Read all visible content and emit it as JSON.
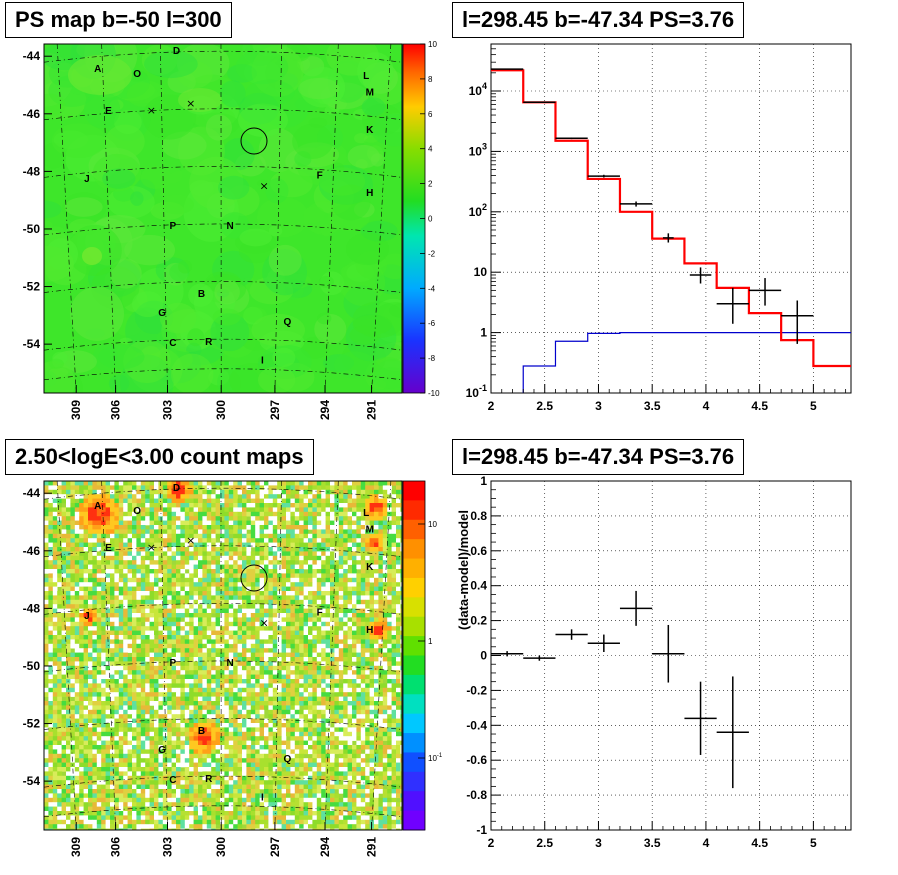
{
  "titles": {
    "ps_map": "PS map b=-50 l=300",
    "spectrum": "l=298.45 b=-47.34 PS=3.76",
    "count_map": "2.50<logE<3.00 count maps",
    "residual": "l=298.45 b=-47.34 PS=3.76"
  },
  "colors": {
    "data": "#000000",
    "model": "#ff0000",
    "background": "#0000cc",
    "map_green": "#2ee61a",
    "circle": "#000000"
  },
  "chart_data": [
    {
      "type": "heatmap",
      "title": "PS map b=-50 l=300",
      "x_ticks": [
        "309",
        "306",
        "303",
        "300",
        "297",
        "294",
        "291"
      ],
      "y_ticks": [
        "-44",
        "-46",
        "-48",
        "-50",
        "-52",
        "-54"
      ],
      "colorbar": {
        "min": -10,
        "max": 10,
        "ticks": [
          "10",
          "8",
          "6",
          "4",
          "2",
          "0",
          "-2",
          "-4",
          "-6",
          "-8",
          "-10"
        ]
      },
      "sources": [
        "A",
        "O",
        "D",
        "E",
        "L",
        "M",
        "K",
        "J",
        "F",
        "H",
        "P",
        "N",
        "B",
        "G",
        "Q",
        "C",
        "R",
        "I"
      ],
      "markers": [
        "x",
        "x",
        "x"
      ],
      "circle": {
        "l": 298.45,
        "b": -47.34
      },
      "grid": true
    },
    {
      "type": "line",
      "title": "l=298.45 b=-47.34 PS=3.76",
      "xlabel": "",
      "ylabel": "",
      "x_ticks": [
        "2",
        "2.5",
        "3",
        "3.5",
        "4",
        "4.5",
        "5"
      ],
      "y_ticks": [
        "10^-1",
        "1",
        "10",
        "10^2",
        "10^3",
        "10^4"
      ],
      "xlim": [
        2,
        5.35
      ],
      "ylim": [
        0.1,
        60000
      ],
      "log_y": true,
      "grid": true,
      "bin_edges": [
        2.0,
        2.3,
        2.6,
        2.9,
        3.2,
        3.5,
        3.8,
        4.1,
        4.4,
        4.7,
        5.0,
        5.35
      ],
      "series": [
        {
          "role": "model",
          "values": [
            22000,
            6500,
            1500,
            350,
            100,
            36,
            14,
            5.5,
            2.1,
            0.75,
            0.28
          ]
        },
        {
          "role": "background",
          "values": [
            0.07,
            0.28,
            0.72,
            0.97,
            1.0,
            1.0,
            1.0,
            1.0,
            1.0,
            1.0,
            1.0
          ]
        },
        {
          "role": "data",
          "points": [
            {
              "x": 2.15,
              "y": 23000,
              "xerr": 0.15,
              "ylo": 22800,
              "yhi": 23200
            },
            {
              "x": 2.45,
              "y": 6500,
              "xerr": 0.15,
              "ylo": 6400,
              "yhi": 6600
            },
            {
              "x": 2.75,
              "y": 1650,
              "xerr": 0.15,
              "ylo": 1600,
              "yhi": 1700
            },
            {
              "x": 3.05,
              "y": 390,
              "xerr": 0.15,
              "ylo": 370,
              "yhi": 410
            },
            {
              "x": 3.35,
              "y": 135,
              "xerr": 0.15,
              "ylo": 122,
              "yhi": 148
            },
            {
              "x": 3.65,
              "y": 37,
              "xerr": 0.05,
              "ylo": 31,
              "yhi": 44
            },
            {
              "x": 3.95,
              "y": 9.0,
              "xerr": 0.1,
              "ylo": 6.5,
              "yhi": 12
            },
            {
              "x": 4.25,
              "y": 3.0,
              "xerr": 0.15,
              "ylo": 1.4,
              "yhi": 5.5
            },
            {
              "x": 4.55,
              "y": 5.0,
              "xerr": 0.15,
              "ylo": 2.8,
              "yhi": 8.0
            },
            {
              "x": 4.85,
              "y": 1.9,
              "xerr": 0.15,
              "ylo": 0.65,
              "yhi": 3.4
            }
          ]
        }
      ]
    },
    {
      "type": "heatmap",
      "title": "2.50<logE<3.00 count maps",
      "x_ticks": [
        "309",
        "306",
        "303",
        "300",
        "297",
        "294",
        "291"
      ],
      "y_ticks": [
        "-44",
        "-46",
        "-48",
        "-50",
        "-52",
        "-54"
      ],
      "colorbar": {
        "log": true,
        "ticks": [
          "10",
          "1",
          "10^-1"
        ]
      },
      "sources": [
        "A",
        "O",
        "D",
        "E",
        "L",
        "M",
        "K",
        "J",
        "F",
        "H",
        "P",
        "N",
        "B",
        "G",
        "Q",
        "C",
        "R",
        "I"
      ],
      "grid": true
    },
    {
      "type": "scatter",
      "title": "l=298.45 b=-47.34 PS=3.76",
      "xlabel": "",
      "ylabel": "(data-model)/model",
      "x_ticks": [
        "2",
        "2.5",
        "3",
        "3.5",
        "4",
        "4.5",
        "5"
      ],
      "y_ticks": [
        "1",
        "0.8",
        "0.6",
        "0.4",
        "0.2",
        "0",
        "-0.2",
        "-0.4",
        "-0.6",
        "-0.8",
        "-1"
      ],
      "xlim": [
        2,
        5.35
      ],
      "ylim": [
        -1,
        1
      ],
      "grid": true,
      "points": [
        {
          "x": 2.15,
          "y": 0.01,
          "xerr": 0.15,
          "yerr": 0.015
        },
        {
          "x": 2.45,
          "y": -0.015,
          "xerr": 0.15,
          "yerr": 0.015
        },
        {
          "x": 2.75,
          "y": 0.12,
          "xerr": 0.15,
          "yerr": 0.03
        },
        {
          "x": 3.05,
          "y": 0.07,
          "xerr": 0.15,
          "yerr": 0.05
        },
        {
          "x": 3.35,
          "y": 0.27,
          "xerr": 0.15,
          "yerr": 0.1
        },
        {
          "x": 3.65,
          "y": 0.01,
          "xerr": 0.15,
          "yerr": 0.165
        },
        {
          "x": 3.95,
          "y": -0.36,
          "xerr": 0.15,
          "yerr": 0.21
        },
        {
          "x": 4.25,
          "y": -0.44,
          "xerr": 0.15,
          "yerr": 0.32
        }
      ]
    }
  ]
}
